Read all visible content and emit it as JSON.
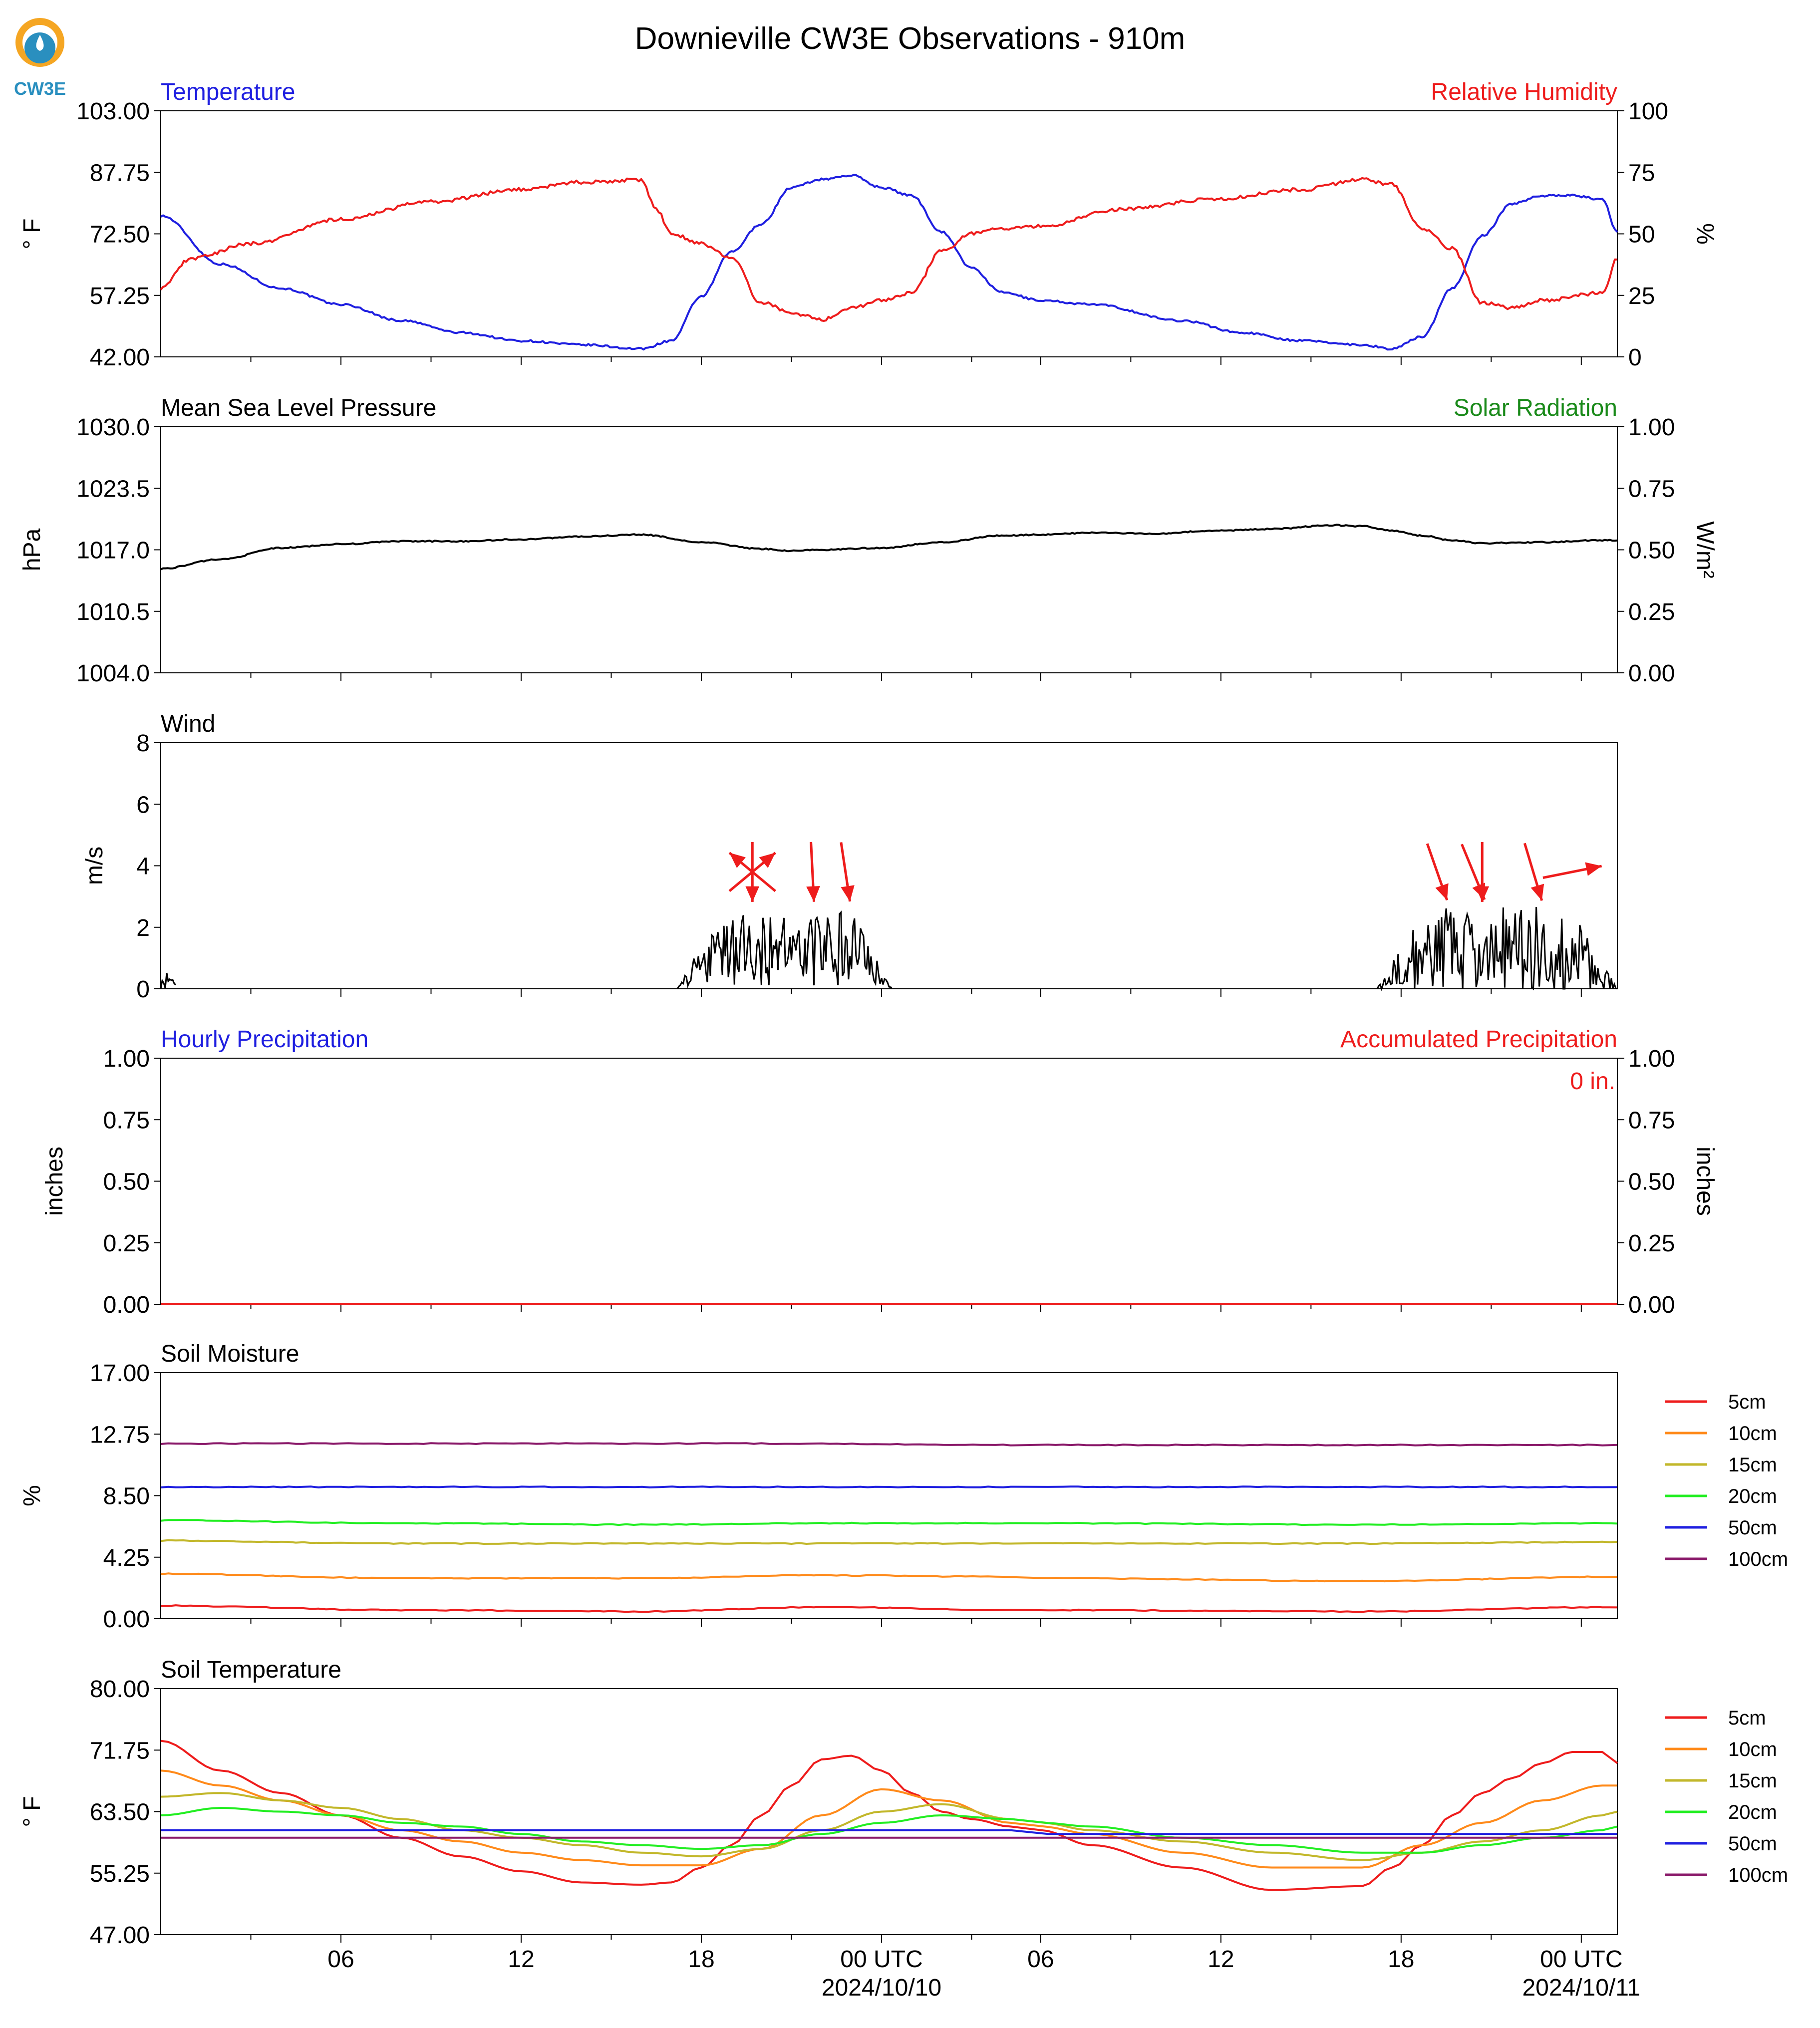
{
  "title": "Downieville CW3E Observations - 910m",
  "logo_text": "CW3E",
  "colors": {
    "temperature": "#1f1fe0",
    "humidity": "#ee1c1c",
    "pressure": "#000000",
    "solar": "#1a8a1a",
    "wind_speed": "#000000",
    "wind_arrow": "#ee1c1c",
    "logo_orange": "#f5a623",
    "logo_blue": "#2a8fbf",
    "5cm": "#ee1c1c",
    "10cm": "#ff8a1a",
    "15cm": "#c2b72a",
    "20cm": "#22ee22",
    "50cm": "#1f1fe0",
    "100cm": "#8a1a6a"
  },
  "x_axis": {
    "start_hour": 0,
    "end_hour": 48.5,
    "gap_hours": [
      28.3,
      29.3
    ],
    "tick_labels": [
      "06",
      "12",
      "18",
      "00 UTC",
      "06",
      "12",
      "18",
      "00 UTC"
    ],
    "date_labels": [
      "2024/10/10",
      "2024/10/11"
    ]
  },
  "chart_data": [
    {
      "type": "line",
      "panel": "temperature_humidity",
      "title_left": "Temperature",
      "title_right": "Relative Humidity",
      "ylabel_left": "° F",
      "ylabel_right": "%",
      "ylim_left": [
        42.0,
        103.0
      ],
      "ylim_right": [
        0,
        100
      ],
      "yticks_left": [
        "103.00",
        "87.75",
        "72.50",
        "57.25",
        "42.00"
      ],
      "yticks_right": [
        "100",
        "75",
        "50",
        "25",
        "0"
      ],
      "series": [
        {
          "axis": "left",
          "x": [
            0,
            2,
            4,
            6,
            8,
            10,
            12,
            14,
            16,
            17,
            18,
            19,
            20,
            21,
            22,
            23,
            24,
            25,
            26,
            27,
            28,
            29.3,
            31,
            34,
            36,
            38,
            40,
            41,
            42,
            43,
            44,
            45,
            46,
            47,
            48,
            48.5
          ],
          "y": [
            77,
            65,
            59,
            55,
            51,
            48,
            46,
            45,
            44,
            46,
            57,
            68,
            75,
            84,
            86,
            87,
            84,
            82,
            73,
            64,
            58,
            56,
            55,
            51,
            48,
            46,
            45,
            44,
            47,
            59,
            72,
            80,
            82,
            82,
            81,
            73
          ]
        },
        {
          "axis": "right",
          "x": [
            0,
            1,
            3,
            6,
            9,
            12,
            14,
            16,
            16.5,
            17,
            18,
            19,
            20,
            21,
            22,
            23,
            24,
            25,
            26,
            27,
            28,
            29.3,
            32,
            35,
            38,
            40,
            41,
            42,
            43,
            44,
            45,
            46,
            48,
            48.5
          ],
          "y": [
            28,
            40,
            46,
            56,
            63,
            68,
            71,
            72,
            60,
            50,
            46,
            40,
            22,
            18,
            15,
            20,
            23,
            26,
            43,
            50,
            52,
            53,
            60,
            64,
            68,
            72,
            70,
            52,
            44,
            22,
            20,
            23,
            26,
            40
          ]
        }
      ]
    },
    {
      "type": "line",
      "panel": "pressure_solar",
      "title_left": "Mean Sea Level Pressure",
      "title_right": "Solar Radiation",
      "ylabel_left": "hPa",
      "ylabel_right": "W/m²",
      "ylim_left": [
        1004.0,
        1030.0
      ],
      "ylim_right": [
        0.0,
        1.0
      ],
      "yticks_left": [
        "1030.0",
        "1023.5",
        "1017.0",
        "1010.5",
        "1004.0"
      ],
      "yticks_right": [
        "1.00",
        "0.75",
        "0.50",
        "0.25",
        "0.00"
      ],
      "series": [
        {
          "axis": "left",
          "x": [
            0,
            2,
            4,
            6,
            8,
            10,
            12,
            14,
            16,
            18,
            20,
            21,
            22,
            24,
            26,
            28,
            29.3,
            31,
            33,
            35,
            37,
            39,
            40,
            41,
            42,
            43,
            44,
            46,
            48,
            48.5
          ],
          "y": [
            1015.0,
            1016.0,
            1017.2,
            1017.6,
            1017.9,
            1017.9,
            1018.1,
            1018.4,
            1018.6,
            1017.8,
            1017.1,
            1016.9,
            1017.0,
            1017.2,
            1017.8,
            1018.5,
            1018.6,
            1018.8,
            1018.7,
            1019.0,
            1019.2,
            1019.6,
            1019.5,
            1019.0,
            1018.5,
            1018.0,
            1017.7,
            1017.8,
            1018.0,
            1018.0
          ]
        }
      ]
    },
    {
      "type": "line",
      "panel": "wind",
      "title_left": "Wind",
      "ylabel_left": "m/s",
      "ylim_left": [
        0,
        8
      ],
      "yticks_left": [
        "8",
        "6",
        "4",
        "2",
        "0"
      ],
      "wind_bursts": [
        {
          "start": 17.2,
          "end": 24.4,
          "mean": 1.3,
          "amp": 1.2
        },
        {
          "start": 40.5,
          "end": 48.5,
          "mean": 1.2,
          "amp": 1.5
        }
      ],
      "wind_small": [
        {
          "start": 0,
          "end": 0.5,
          "value": 0.6
        }
      ],
      "wind_arrows": [
        {
          "x": 19.7,
          "u": 0.0,
          "v": -1.0
        },
        {
          "x": 19.7,
          "u": 0.6,
          "v": 0.5
        },
        {
          "x": 19.7,
          "u": -0.6,
          "v": 0.5
        },
        {
          "x": 21.7,
          "u": 0.05,
          "v": -1.0
        },
        {
          "x": 22.8,
          "u": 0.15,
          "v": -1.0
        },
        {
          "x": 42.5,
          "u": 0.35,
          "v": -1.0
        },
        {
          "x": 43.7,
          "u": 0.35,
          "v": -0.85
        },
        {
          "x": 44.0,
          "u": 0.0,
          "v": -1.0
        },
        {
          "x": 45.7,
          "u": 0.3,
          "v": -1.0
        },
        {
          "x": 47.0,
          "u": 1.0,
          "v": 0.2
        }
      ]
    },
    {
      "type": "line",
      "panel": "precipitation",
      "title_left": "Hourly Precipitation",
      "title_right": "Accumulated Precipitation",
      "annotation": "0 in.",
      "ylabel_left": "inches",
      "ylabel_right": "inches",
      "ylim_left": [
        0.0,
        1.0
      ],
      "ylim_right": [
        0.0,
        1.0
      ],
      "yticks_left": [
        "1.00",
        "0.75",
        "0.50",
        "0.25",
        "0.00"
      ],
      "yticks_right": [
        "1.00",
        "0.75",
        "0.50",
        "0.25",
        "0.00"
      ],
      "series": [
        {
          "axis": "left",
          "x": [
            0,
            48.5
          ],
          "y": [
            0,
            0
          ]
        }
      ]
    },
    {
      "type": "line",
      "panel": "soil_moisture",
      "title_left": "Soil Moisture",
      "ylabel_left": "%",
      "ylim_left": [
        0.0,
        17.0
      ],
      "yticks_left": [
        "17.00",
        "12.75",
        "8.50",
        "4.25",
        "0.00"
      ],
      "series": [
        {
          "name": "5cm",
          "x": [
            0,
            8,
            16,
            22,
            28.3,
            29.3,
            40,
            48.5
          ],
          "y": [
            0.9,
            0.6,
            0.5,
            0.8,
            0.6,
            0.6,
            0.5,
            0.8
          ]
        },
        {
          "name": "10cm",
          "x": [
            0,
            8,
            16,
            22,
            28.3,
            29.3,
            40,
            48.5
          ],
          "y": [
            3.1,
            2.8,
            2.8,
            3.0,
            2.9,
            2.8,
            2.6,
            2.9
          ]
        },
        {
          "name": "15cm",
          "x": [
            0,
            8,
            16,
            22,
            28.3,
            29.3,
            40,
            48.5
          ],
          "y": [
            5.4,
            5.2,
            5.2,
            5.2,
            5.2,
            5.2,
            5.2,
            5.3
          ]
        },
        {
          "name": "20cm",
          "x": [
            0,
            8,
            16,
            22,
            28.3,
            29.3,
            40,
            48.5
          ],
          "y": [
            6.8,
            6.6,
            6.5,
            6.6,
            6.6,
            6.6,
            6.5,
            6.6
          ]
        },
        {
          "name": "50cm",
          "x": [
            0,
            28.3,
            29.3,
            48.5
          ],
          "y": [
            9.1,
            9.1,
            9.1,
            9.1
          ]
        },
        {
          "name": "100cm",
          "x": [
            0,
            20,
            28.3,
            29.3,
            48.5
          ],
          "y": [
            12.1,
            12.1,
            12.0,
            12.0,
            12.0
          ]
        }
      ],
      "legend": [
        "5cm",
        "10cm",
        "15cm",
        "20cm",
        "50cm",
        "100cm"
      ]
    },
    {
      "type": "line",
      "panel": "soil_temperature",
      "title_left": "Soil Temperature",
      "ylabel_left": "° F",
      "ylim_left": [
        47.0,
        80.0
      ],
      "yticks_left": [
        "80.00",
        "71.75",
        "63.50",
        "55.25",
        "47.00"
      ],
      "series": [
        {
          "name": "5cm",
          "x": [
            0,
            2,
            4,
            6,
            8,
            10,
            12,
            14,
            16,
            17,
            18,
            19,
            20,
            21,
            22,
            23,
            24,
            25,
            26,
            27,
            28.3,
            29.3,
            31,
            34,
            37,
            40,
            41,
            42,
            43,
            44,
            45,
            46,
            47,
            48,
            48.5
          ],
          "y": [
            73,
            69,
            66,
            63,
            60,
            57.5,
            55.5,
            54,
            53.7,
            54,
            56,
            59,
            63,
            67,
            70.5,
            71,
            69,
            66,
            63.5,
            62.5,
            61.5,
            61,
            59,
            56,
            53,
            53.5,
            56,
            59,
            63,
            66,
            68,
            70,
            71.5,
            71.5,
            70
          ]
        },
        {
          "name": "10cm",
          "x": [
            0,
            2,
            4,
            6,
            8,
            10,
            12,
            14,
            16,
            18,
            20,
            22,
            24,
            26,
            28.3,
            29.3,
            31,
            34,
            37,
            40,
            42,
            44,
            46,
            48,
            48.5
          ],
          "y": [
            69,
            67,
            65,
            63,
            61,
            59.5,
            58,
            57,
            56.3,
            56.3,
            58.5,
            63,
            66.5,
            65,
            62,
            61.5,
            60.5,
            58,
            56,
            56,
            59,
            62,
            65,
            67,
            67
          ]
        },
        {
          "name": "15cm",
          "x": [
            0,
            2,
            4,
            6,
            8,
            10,
            12,
            14,
            16,
            18,
            20,
            22,
            24,
            26,
            28.3,
            29.3,
            31,
            34,
            37,
            40,
            42,
            44,
            46,
            48,
            48.5
          ],
          "y": [
            65.5,
            66,
            65,
            64,
            62.5,
            61,
            60,
            59,
            58,
            57.5,
            58.5,
            61,
            63.5,
            64.5,
            62.5,
            62,
            61,
            59.5,
            58,
            57,
            58,
            59.5,
            61,
            63,
            63.5
          ]
        },
        {
          "name": "20cm",
          "x": [
            0,
            2,
            4,
            6,
            8,
            10,
            12,
            14,
            16,
            18,
            20,
            22,
            24,
            26,
            28.3,
            29.3,
            31,
            34,
            37,
            40,
            42,
            44,
            46,
            48,
            48.5
          ],
          "y": [
            63,
            64,
            63.5,
            63,
            62,
            61.5,
            60.5,
            59.5,
            59,
            58.5,
            59,
            60.5,
            62,
            63,
            62.5,
            62,
            61.5,
            60,
            59,
            58,
            58,
            59,
            60,
            61,
            61.5
          ]
        },
        {
          "name": "50cm",
          "x": [
            0,
            28.3,
            29.3,
            48.5
          ],
          "y": [
            61,
            61,
            60.5,
            60.5
          ]
        },
        {
          "name": "100cm",
          "x": [
            0,
            28.3,
            29.3,
            48.5
          ],
          "y": [
            60,
            60,
            60,
            60
          ]
        }
      ],
      "legend": [
        "5cm",
        "10cm",
        "15cm",
        "20cm",
        "50cm",
        "100cm"
      ]
    }
  ]
}
